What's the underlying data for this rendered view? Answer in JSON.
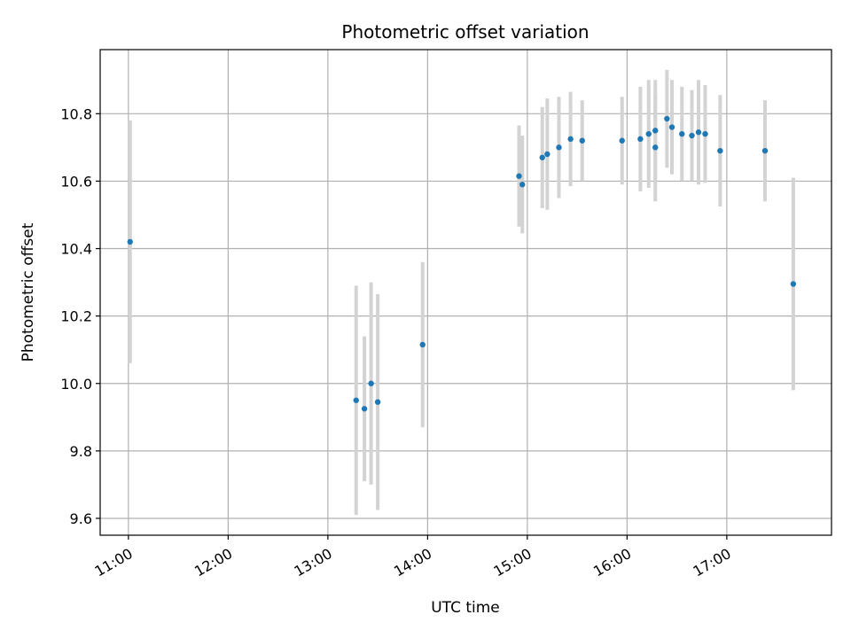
{
  "chart_data": {
    "type": "scatter",
    "title": "Photometric offset variation",
    "xlabel": "UTC time",
    "ylabel": "Photometric offset",
    "x_ticks": [
      "11:00",
      "12:00",
      "13:00",
      "14:00",
      "15:00",
      "16:00",
      "17:00"
    ],
    "y_ticks": [
      "9.6",
      "9.8",
      "10.0",
      "10.2",
      "10.4",
      "10.6",
      "10.8"
    ],
    "xlim": [
      "10:43",
      "18:03"
    ],
    "ylim": [
      9.55,
      10.99
    ],
    "grid": true,
    "colors": {
      "point": "#1f77b4",
      "errorbar": "#d3d3d3",
      "grid": "#b0b0b0"
    },
    "points": [
      {
        "t": "11:01",
        "y": 10.42,
        "err": 0.36
      },
      {
        "t": "13:17",
        "y": 9.95,
        "err": 0.34
      },
      {
        "t": "13:22",
        "y": 9.925,
        "err": 0.215
      },
      {
        "t": "13:26",
        "y": 10.0,
        "err": 0.3
      },
      {
        "t": "13:30",
        "y": 9.945,
        "err": 0.32
      },
      {
        "t": "13:57",
        "y": 10.115,
        "err": 0.245
      },
      {
        "t": "14:55",
        "y": 10.615,
        "err": 0.15
      },
      {
        "t": "14:57",
        "y": 10.59,
        "err": 0.145
      },
      {
        "t": "15:09",
        "y": 10.67,
        "err": 0.15
      },
      {
        "t": "15:12",
        "y": 10.68,
        "err": 0.165
      },
      {
        "t": "15:19",
        "y": 10.7,
        "err": 0.15
      },
      {
        "t": "15:26",
        "y": 10.725,
        "err": 0.14
      },
      {
        "t": "15:33",
        "y": 10.72,
        "err": 0.12
      },
      {
        "t": "15:57",
        "y": 10.72,
        "err": 0.13
      },
      {
        "t": "16:08",
        "y": 10.725,
        "err": 0.155
      },
      {
        "t": "16:13",
        "y": 10.74,
        "err": 0.16
      },
      {
        "t": "16:17",
        "y": 10.75,
        "err": 0.15
      },
      {
        "t": "16:17",
        "y": 10.7,
        "err": 0.16
      },
      {
        "t": "16:24",
        "y": 10.785,
        "err": 0.145
      },
      {
        "t": "16:27",
        "y": 10.76,
        "err": 0.14
      },
      {
        "t": "16:33",
        "y": 10.74,
        "err": 0.14
      },
      {
        "t": "16:39",
        "y": 10.735,
        "err": 0.135
      },
      {
        "t": "16:43",
        "y": 10.745,
        "err": 0.155
      },
      {
        "t": "16:47",
        "y": 10.74,
        "err": 0.145
      },
      {
        "t": "16:56",
        "y": 10.69,
        "err": 0.165
      },
      {
        "t": "17:23",
        "y": 10.69,
        "err": 0.15
      },
      {
        "t": "17:40",
        "y": 10.295,
        "err": 0.315
      }
    ]
  }
}
